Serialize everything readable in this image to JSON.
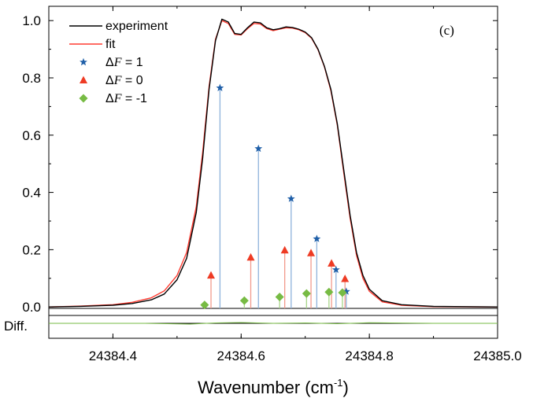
{
  "chart_data": {
    "type": "line",
    "panel_label": "(c)",
    "xlabel_main": "Wavenumber (cm",
    "xlabel_sup": "-1",
    "xlabel_end": ")",
    "ylabel": "",
    "diff_label": "Diff.",
    "xlim": [
      24384.3,
      24385.0
    ],
    "ylim": [
      -0.005,
      1.05
    ],
    "x_ticks": [
      24384.4,
      24384.6,
      24384.8,
      24385.0
    ],
    "x_tick_labels": [
      "24384.4",
      "24384.6",
      "24384.8",
      "24385.0"
    ],
    "y_ticks": [
      0.0,
      0.2,
      0.4,
      0.6,
      0.8,
      1.0
    ],
    "y_tick_labels": [
      "0.0",
      "0.2",
      "0.4",
      "0.6",
      "0.8",
      "1.0"
    ],
    "legend": [
      {
        "key": "experiment",
        "label": "experiment",
        "symbol": "line",
        "color": "#000000"
      },
      {
        "key": "fit",
        "label": "fit",
        "symbol": "line",
        "color": "#ff3b30"
      },
      {
        "key": "dF1",
        "label_italic": "F",
        "label_pre": "Δ",
        "label_post": " = 1",
        "symbol": "star",
        "color": "#1f5fa8"
      },
      {
        "key": "dF0",
        "label_italic": "F",
        "label_pre": "Δ",
        "label_post": " = 0",
        "symbol": "triangle",
        "color": "#ee3b24"
      },
      {
        "key": "dFm1",
        "label_italic": "F",
        "label_pre": "Δ",
        "label_post": " = -1",
        "symbol": "diamond",
        "color": "#77bb44"
      }
    ],
    "series": [
      {
        "name": "experiment",
        "color": "#000000",
        "x": [
          24384.3,
          24384.35,
          24384.4,
          24384.43,
          24384.46,
          24384.48,
          24384.5,
          24384.515,
          24384.53,
          24384.54,
          24384.55,
          24384.56,
          24384.57,
          24384.58,
          24384.59,
          24384.6,
          24384.61,
          24384.62,
          24384.63,
          24384.64,
          24384.65,
          24384.66,
          24384.67,
          24384.68,
          24384.69,
          24384.7,
          24384.71,
          24384.72,
          24384.73,
          24384.74,
          24384.75,
          24384.76,
          24384.77,
          24384.78,
          24384.79,
          24384.8,
          24384.82,
          24384.85,
          24384.9,
          24385.0
        ],
        "y": [
          0.0,
          0.002,
          0.006,
          0.012,
          0.025,
          0.045,
          0.095,
          0.17,
          0.33,
          0.52,
          0.76,
          0.93,
          1.005,
          0.995,
          0.955,
          0.952,
          0.975,
          0.995,
          0.992,
          0.975,
          0.968,
          0.972,
          0.978,
          0.976,
          0.97,
          0.96,
          0.94,
          0.9,
          0.84,
          0.76,
          0.64,
          0.48,
          0.32,
          0.19,
          0.11,
          0.062,
          0.022,
          0.008,
          0.002,
          0.0
        ]
      },
      {
        "name": "fit",
        "color": "#ff3b30",
        "x": [
          24384.3,
          24384.35,
          24384.4,
          24384.43,
          24384.46,
          24384.48,
          24384.5,
          24384.515,
          24384.53,
          24384.54,
          24384.55,
          24384.56,
          24384.57,
          24384.58,
          24384.59,
          24384.6,
          24384.61,
          24384.62,
          24384.63,
          24384.64,
          24384.65,
          24384.66,
          24384.67,
          24384.68,
          24384.69,
          24384.7,
          24384.71,
          24384.72,
          24384.73,
          24384.74,
          24384.75,
          24384.76,
          24384.77,
          24384.78,
          24384.79,
          24384.8,
          24384.82,
          24384.85,
          24384.9,
          24385.0
        ],
        "y": [
          0.0,
          0.003,
          0.008,
          0.016,
          0.032,
          0.056,
          0.11,
          0.19,
          0.35,
          0.54,
          0.77,
          0.935,
          1.0,
          0.99,
          0.952,
          0.95,
          0.972,
          0.99,
          0.988,
          0.972,
          0.965,
          0.97,
          0.975,
          0.974,
          0.968,
          0.958,
          0.938,
          0.898,
          0.838,
          0.755,
          0.635,
          0.47,
          0.31,
          0.18,
          0.1,
          0.055,
          0.018,
          0.006,
          0.001,
          0.0
        ]
      }
    ],
    "sticks": [
      {
        "name": "dF1",
        "symbol": "star",
        "color": "#1f5fa8",
        "stem_color": "#8fb3dc",
        "x": [
          24384.567,
          24384.627,
          24384.678,
          24384.718,
          24384.748,
          24384.764
        ],
        "y": [
          0.765,
          0.553,
          0.378,
          0.238,
          0.13,
          0.054
        ]
      },
      {
        "name": "dF0",
        "symbol": "triangle",
        "color": "#ee3b24",
        "stem_color": "#f29a8c",
        "x": [
          24384.553,
          24384.615,
          24384.668,
          24384.709,
          24384.741,
          24384.762
        ],
        "y": [
          0.11,
          0.173,
          0.198,
          0.188,
          0.152,
          0.098
        ]
      },
      {
        "name": "dFm1",
        "symbol": "diamond",
        "color": "#77bb44",
        "stem_color": "#a8d68a",
        "x": [
          24384.543,
          24384.605,
          24384.66,
          24384.702,
          24384.737,
          24384.758
        ],
        "y": [
          0.007,
          0.022,
          0.035,
          0.047,
          0.052,
          0.05
        ]
      }
    ],
    "diff": {
      "color": "#77bb44",
      "x": [
        24384.3,
        24384.45,
        24384.52,
        24384.56,
        24384.6,
        24384.65,
        24384.7,
        24384.75,
        24384.8,
        24384.9,
        24385.0
      ],
      "y": [
        0.0,
        0.0,
        -0.004,
        0.002,
        0.004,
        0.0,
        0.002,
        -0.002,
        0.003,
        0.0,
        0.0
      ]
    }
  }
}
